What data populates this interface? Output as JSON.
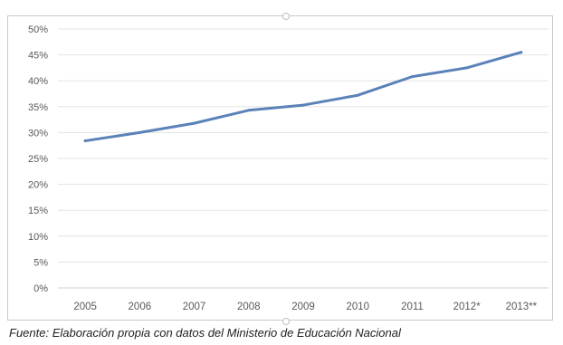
{
  "chart_data": {
    "type": "line",
    "title": "",
    "xlabel": "",
    "ylabel": "",
    "categories": [
      "2005",
      "2006",
      "2007",
      "2008",
      "2009",
      "2010",
      "2011",
      "2012*",
      "2013**"
    ],
    "series": [
      {
        "values": [
          28.4,
          30.0,
          31.8,
          34.3,
          35.3,
          37.2,
          40.8,
          42.5,
          45.5
        ]
      }
    ],
    "ylim": [
      0,
      50
    ],
    "yticks": [
      0,
      5,
      10,
      15,
      20,
      25,
      30,
      35,
      40,
      45,
      50
    ],
    "ytick_labels": [
      "0%",
      "5%",
      "10%",
      "15%",
      "20%",
      "25%",
      "30%",
      "35%",
      "40%",
      "45%",
      "50%"
    ],
    "grid": true,
    "legend": "none",
    "colors": {
      "line": "#5b82b8",
      "grid": "#e3e3e3",
      "tick_text": "#595959"
    }
  },
  "caption": "Fuente: Elaboración propia con datos del Ministerio de Educación Nacional"
}
